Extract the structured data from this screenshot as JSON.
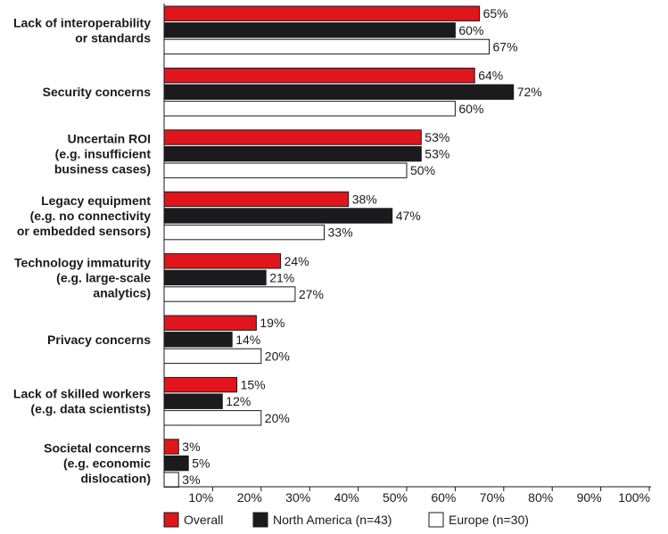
{
  "chart_data": {
    "type": "bar",
    "orientation": "horizontal",
    "categories": [
      [
        "Lack of interoperability",
        "or standards"
      ],
      [
        "Security concerns"
      ],
      [
        "Uncertain ROI",
        "(e.g. insufficient",
        "business cases)"
      ],
      [
        "Legacy equipment",
        "(e.g. no connectivity",
        "or embedded sensors)"
      ],
      [
        "Technology immaturity",
        "(e.g. large-scale",
        "analytics)"
      ],
      [
        "Privacy concerns"
      ],
      [
        "Lack of skilled workers",
        "(e.g. data scientists)"
      ],
      [
        "Societal concerns",
        "(e.g. economic",
        "dislocation)"
      ]
    ],
    "series": [
      {
        "name": "Overall",
        "color": "#e0161c",
        "values": [
          65,
          64,
          53,
          38,
          24,
          19,
          15,
          3
        ]
      },
      {
        "name": "North America (n=43)",
        "color": "#1b1b1d",
        "values": [
          60,
          72,
          53,
          47,
          21,
          14,
          12,
          5
        ]
      },
      {
        "name": "Europe (n=30)",
        "color": "#ffffff",
        "values": [
          67,
          60,
          50,
          33,
          27,
          20,
          20,
          3
        ]
      }
    ],
    "value_suffix": "%",
    "xlim": [
      0,
      100
    ],
    "x_ticks": [
      "10%",
      "20%",
      "30%",
      "40%",
      "50%",
      "60%",
      "70%",
      "80%",
      "90%",
      "100%"
    ],
    "grid": false,
    "legend_position": "bottom-left",
    "title": "",
    "xlabel": "",
    "ylabel": ""
  }
}
